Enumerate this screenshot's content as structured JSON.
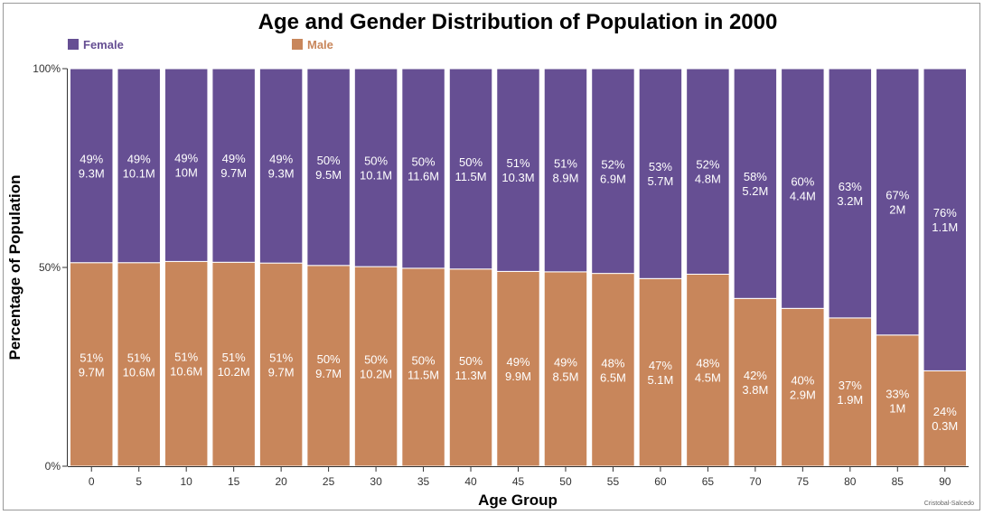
{
  "chart_data": {
    "type": "bar",
    "stacked": true,
    "normalized": true,
    "title": "Age and Gender Distribution of Population in 2000",
    "xlabel": "Age Group",
    "ylabel": "Percentage of Population",
    "ylim": [
      0,
      100
    ],
    "yticks": [
      {
        "value": 0,
        "label": "0%"
      },
      {
        "value": 50,
        "label": "50%"
      },
      {
        "value": 100,
        "label": "100%"
      }
    ],
    "categories": [
      "0",
      "5",
      "10",
      "15",
      "20",
      "25",
      "30",
      "35",
      "40",
      "45",
      "50",
      "55",
      "60",
      "65",
      "70",
      "75",
      "80",
      "85",
      "90"
    ],
    "series": [
      {
        "name": "Male",
        "color": "#c8865b",
        "percent": [
          51.2,
          51.2,
          51.5,
          51.3,
          51.1,
          50.5,
          50.2,
          49.8,
          49.6,
          49.0,
          48.9,
          48.5,
          47.2,
          48.3,
          42.2,
          39.7,
          37.3,
          33.0,
          24.0
        ],
        "percent_labels": [
          "51%",
          "51%",
          "51%",
          "51%",
          "51%",
          "50%",
          "50%",
          "50%",
          "50%",
          "49%",
          "49%",
          "48%",
          "47%",
          "48%",
          "42%",
          "40%",
          "37%",
          "33%",
          "24%"
        ],
        "value_labels": [
          "9.7M",
          "10.6M",
          "10.6M",
          "10.2M",
          "9.7M",
          "9.7M",
          "10.2M",
          "11.5M",
          "11.3M",
          "9.9M",
          "8.5M",
          "6.5M",
          "5.1M",
          "4.5M",
          "3.8M",
          "2.9M",
          "1.9M",
          "1M",
          "0.3M"
        ]
      },
      {
        "name": "Female",
        "color": "#664f93",
        "percent": [
          48.8,
          48.8,
          48.5,
          48.7,
          48.9,
          49.5,
          49.8,
          50.2,
          50.4,
          51.0,
          51.1,
          51.5,
          52.8,
          51.7,
          57.8,
          60.3,
          62.7,
          67.0,
          76.0
        ],
        "percent_labels": [
          "49%",
          "49%",
          "49%",
          "49%",
          "49%",
          "50%",
          "50%",
          "50%",
          "50%",
          "51%",
          "51%",
          "52%",
          "53%",
          "52%",
          "58%",
          "60%",
          "63%",
          "67%",
          "76%"
        ],
        "value_labels": [
          "9.3M",
          "10.1M",
          "10M",
          "9.7M",
          "9.3M",
          "9.5M",
          "10.1M",
          "11.6M",
          "11.5M",
          "10.3M",
          "8.9M",
          "6.9M",
          "5.7M",
          "4.8M",
          "5.2M",
          "4.4M",
          "3.2M",
          "2M",
          "1.1M"
        ]
      }
    ],
    "legend": {
      "placement": "top-left",
      "entries": [
        {
          "label": "Female",
          "color": "#664f93"
        },
        {
          "label": "Male",
          "color": "#c8865b"
        }
      ]
    },
    "credit": "Cristobal-Salcedo"
  }
}
